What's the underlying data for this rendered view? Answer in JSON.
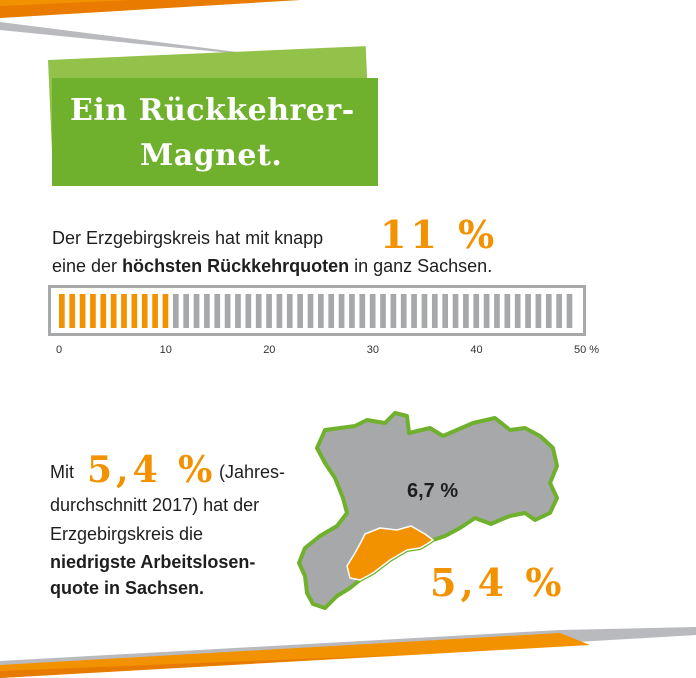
{
  "title": {
    "line1": "Ein Rückkehrer-",
    "line2": "Magnet."
  },
  "return_rate": {
    "text_before": "Der Erzgebirgskreis hat mit knapp",
    "value_label": "11 %",
    "text_line2_a": "eine der ",
    "text_line2_bold": "höchsten Rückkehrquoten",
    "text_line2_b": " in ganz Sachsen.",
    "value": 11,
    "max": 50,
    "segments": 50,
    "ticks": [
      "0",
      "10",
      "20",
      "30",
      "40",
      "50 %"
    ]
  },
  "unemployment": {
    "prefix": "Mit",
    "value_label": "5,4 %",
    "suffix_line1": "(Jahres-",
    "line2": "durchschnitt 2017) hat der",
    "line3": "Erzgebirgskreis die",
    "line4_bold": "niedrigste Arbeitslosen-",
    "line5_bold": "quote in Sachsen."
  },
  "map": {
    "saxony_label": "6,7 %",
    "district_label": "5,4 %"
  },
  "colors": {
    "green": "#6fb02d",
    "orange": "#f39200",
    "gray": "#a6a8aa"
  }
}
